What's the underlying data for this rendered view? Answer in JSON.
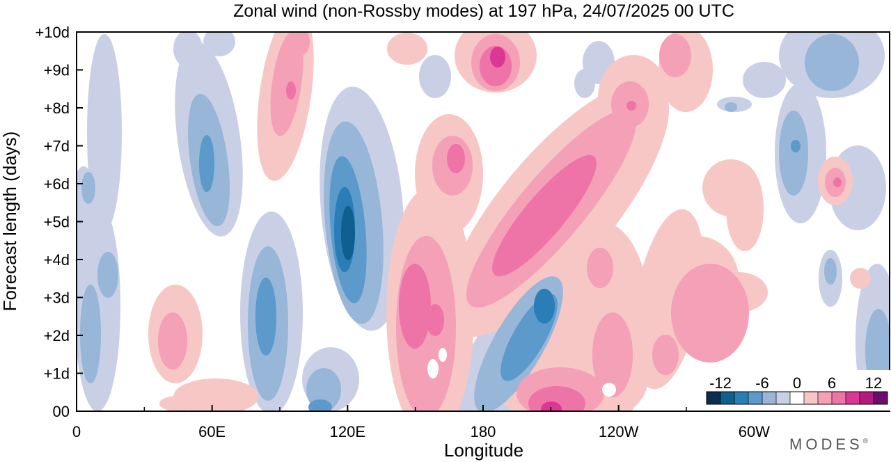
{
  "chart_data": {
    "type": "heatmap",
    "title": "Zonal wind (non-Rossby modes) at 197 hPa,  24/07/2025  00 UTC",
    "xlabel": "Longitude",
    "ylabel": "Forecast length (days)",
    "x_ticks": [
      {
        "lon": 0,
        "label": "0"
      },
      {
        "lon": 60,
        "label": "60E"
      },
      {
        "lon": 120,
        "label": "120E"
      },
      {
        "lon": 180,
        "label": "180"
      },
      {
        "lon": 240,
        "label": "120W"
      },
      {
        "lon": 300,
        "label": "60W"
      }
    ],
    "x_minor_ticks": [
      30,
      90,
      150,
      210,
      270,
      330
    ],
    "xlim": [
      0,
      360
    ],
    "y_ticks": [
      {
        "day": 0,
        "label": "00"
      },
      {
        "day": 1,
        "label": "+1d"
      },
      {
        "day": 2,
        "label": "+2d"
      },
      {
        "day": 3,
        "label": "+3d"
      },
      {
        "day": 4,
        "label": "+4d"
      },
      {
        "day": 5,
        "label": "+5d"
      },
      {
        "day": 6,
        "label": "+6d"
      },
      {
        "day": 7,
        "label": "+7d"
      },
      {
        "day": 8,
        "label": "+8d"
      },
      {
        "day": 9,
        "label": "+9d"
      },
      {
        "day": 10,
        "label": "+10d"
      }
    ],
    "ylim": [
      0,
      10
    ],
    "colorbar": {
      "levels": [
        -14,
        -12,
        -10,
        -8,
        -6,
        -4,
        -2,
        2,
        4,
        6,
        8,
        10,
        12,
        14
      ],
      "labels": [
        {
          "value": -12,
          "label": "-12"
        },
        {
          "value": -6,
          "label": "-6"
        },
        {
          "value": 0,
          "label": "0"
        },
        {
          "value": 6,
          "label": "6"
        },
        {
          "value": 12,
          "label": "12"
        }
      ],
      "colors": [
        "#0d2d4f",
        "#0f5f8f",
        "#2a7db5",
        "#5b9acb",
        "#98b6d8",
        "#c9d0e6",
        "#ffffff",
        "#f7c7c6",
        "#f4a0b7",
        "#ee74a8",
        "#db3795",
        "#b51a80",
        "#6a0d6b"
      ]
    },
    "features": [
      {
        "lon": 120,
        "day": 4.8,
        "value": -12,
        "desc": "negative anomaly"
      },
      {
        "lon": 60,
        "day": 6.2,
        "value": -8
      },
      {
        "lon": 80,
        "day": 2.6,
        "value": -8
      },
      {
        "lon": 2,
        "day": 2.5,
        "value": -8
      },
      {
        "lon": 160,
        "day": 2.9,
        "value": 8
      },
      {
        "lon": 208,
        "day": 5.2,
        "value": 8
      },
      {
        "lon": 185,
        "day": 9.2,
        "value": 10
      },
      {
        "lon": 155,
        "day": 6.6,
        "value": 8
      },
      {
        "lon": 200,
        "day": 0.1,
        "value": 10
      },
      {
        "lon": 35,
        "day": 1.8,
        "value": 6
      },
      {
        "lon": 92,
        "day": 8.7,
        "value": 6
      },
      {
        "lon": 255,
        "day": 2.8,
        "value": 4
      },
      {
        "lon": 212,
        "day": 2.8,
        "value": -8
      },
      {
        "lon": 342,
        "day": 6.2,
        "value": 4
      },
      {
        "lon": 350,
        "day": 1.8,
        "value": -6
      }
    ]
  },
  "brand": "MODES",
  "brand_mark": "®"
}
